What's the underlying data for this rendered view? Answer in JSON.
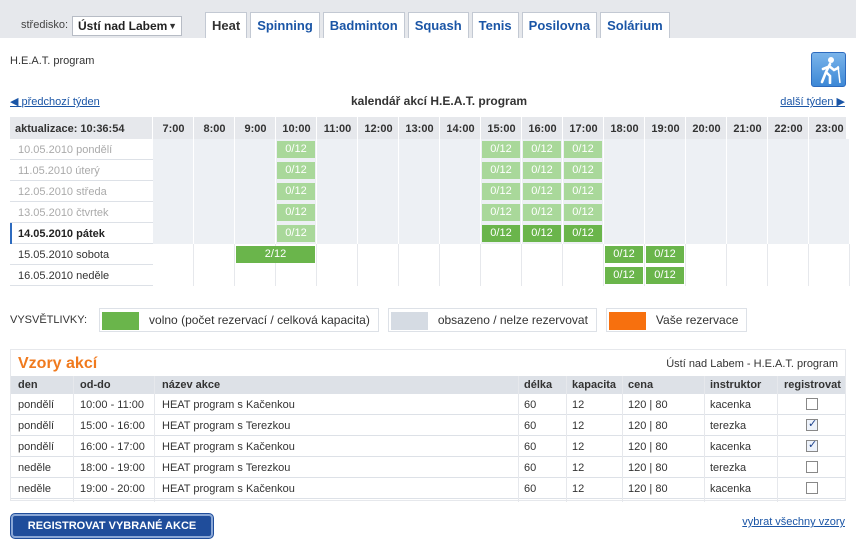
{
  "header": {
    "center_label": "středisko:",
    "center_value": "Ústí nad Labem",
    "tabs": [
      {
        "label": "Heat",
        "active": true
      },
      {
        "label": "Spinning"
      },
      {
        "label": "Badminton"
      },
      {
        "label": "Squash"
      },
      {
        "label": "Tenis"
      },
      {
        "label": "Posilovna"
      },
      {
        "label": "Solárium"
      }
    ]
  },
  "page": {
    "subtitle": "H.E.A.T. program",
    "icon": "person-walking-icon"
  },
  "calendar": {
    "prev_label": "předchozí týden",
    "next_label": "další týden",
    "title": "kalendář akcí H.E.A.T. program",
    "updated_label": "aktualizace: 10:36:54",
    "hours": [
      "7:00",
      "8:00",
      "9:00",
      "10:00",
      "11:00",
      "12:00",
      "13:00",
      "14:00",
      "15:00",
      "16:00",
      "17:00",
      "18:00",
      "19:00",
      "20:00",
      "21:00",
      "22:00",
      "23:00"
    ],
    "days": [
      {
        "label": "10.05.2010 pondělí",
        "state": "past",
        "slots": [
          {
            "hour": "10:00",
            "text": "0/12",
            "span": 1
          },
          {
            "hour": "15:00",
            "text": "0/12",
            "span": 1
          },
          {
            "hour": "16:00",
            "text": "0/12",
            "span": 1
          },
          {
            "hour": "17:00",
            "text": "0/12",
            "span": 1
          }
        ]
      },
      {
        "label": "11.05.2010 úterý",
        "state": "past",
        "slots": [
          {
            "hour": "10:00",
            "text": "0/12",
            "span": 1
          },
          {
            "hour": "15:00",
            "text": "0/12",
            "span": 1
          },
          {
            "hour": "16:00",
            "text": "0/12",
            "span": 1
          },
          {
            "hour": "17:00",
            "text": "0/12",
            "span": 1
          }
        ]
      },
      {
        "label": "12.05.2010 středa",
        "state": "past",
        "slots": [
          {
            "hour": "10:00",
            "text": "0/12",
            "span": 1
          },
          {
            "hour": "15:00",
            "text": "0/12",
            "span": 1
          },
          {
            "hour": "16:00",
            "text": "0/12",
            "span": 1
          },
          {
            "hour": "17:00",
            "text": "0/12",
            "span": 1
          }
        ]
      },
      {
        "label": "13.05.2010 čtvrtek",
        "state": "past",
        "slots": [
          {
            "hour": "10:00",
            "text": "0/12",
            "span": 1
          },
          {
            "hour": "15:00",
            "text": "0/12",
            "span": 1
          },
          {
            "hour": "16:00",
            "text": "0/12",
            "span": 1
          },
          {
            "hour": "17:00",
            "text": "0/12",
            "span": 1
          }
        ]
      },
      {
        "label": "14.05.2010 pátek",
        "state": "today",
        "slots": [
          {
            "hour": "10:00",
            "text": "0/12",
            "span": 1,
            "past": true
          },
          {
            "hour": "15:00",
            "text": "0/12",
            "span": 1
          },
          {
            "hour": "16:00",
            "text": "0/12",
            "span": 1
          },
          {
            "hour": "17:00",
            "text": "0/12",
            "span": 1
          }
        ]
      },
      {
        "label": "15.05.2010 sobota",
        "state": "future",
        "slots": [
          {
            "hour": "9:00",
            "text": "2/12",
            "span": 2
          },
          {
            "hour": "18:00",
            "text": "0/12",
            "span": 1
          },
          {
            "hour": "19:00",
            "text": "0/12",
            "span": 1
          }
        ]
      },
      {
        "label": "16.05.2010 neděle",
        "state": "future",
        "slots": [
          {
            "hour": "18:00",
            "text": "0/12",
            "span": 1
          },
          {
            "hour": "19:00",
            "text": "0/12",
            "span": 1
          }
        ]
      }
    ]
  },
  "legend": {
    "title": "VYSVĚTLIVKY:",
    "items": [
      {
        "label": "volno (počet rezervací / celková kapacita)",
        "color": "#6ab54b"
      },
      {
        "label": "obsazeno / nelze rezervovat",
        "color": "#d5dbe3"
      },
      {
        "label": "Vaše rezervace",
        "color": "#f7700e"
      }
    ]
  },
  "templates": {
    "title": "Vzory akcí",
    "location": "Ústí nad Labem - H.E.A.T. program",
    "columns": [
      "den",
      "od-do",
      "název akce",
      "délka",
      "kapacita",
      "cena",
      "instruktor",
      "registrovat"
    ],
    "rows": [
      {
        "den": "pondělí",
        "time": "10:00 - 11:00",
        "name": "HEAT program s Kačenkou",
        "length": "60",
        "capacity": "12",
        "price": "120 | 80",
        "instructor": "kacenka",
        "checked": false
      },
      {
        "den": "pondělí",
        "time": "15:00 - 16:00",
        "name": "HEAT program s Terezkou",
        "length": "60",
        "capacity": "12",
        "price": "120 | 80",
        "instructor": "terezka",
        "checked": true
      },
      {
        "den": "pondělí",
        "time": "16:00 - 17:00",
        "name": "HEAT program s Kačenkou",
        "length": "60",
        "capacity": "12",
        "price": "120 | 80",
        "instructor": "kacenka",
        "checked": true
      },
      {
        "den": "neděle",
        "time": "18:00 - 19:00",
        "name": "HEAT program s Terezkou",
        "length": "60",
        "capacity": "12",
        "price": "120 | 80",
        "instructor": "terezka",
        "checked": false
      },
      {
        "den": "neděle",
        "time": "19:00 - 20:00",
        "name": "HEAT program s Kačenkou",
        "length": "60",
        "capacity": "12",
        "price": "120 | 80",
        "instructor": "kacenka",
        "checked": false
      }
    ],
    "register_button": "REGISTROVAT VYBRANÉ AKCE",
    "select_all": "vybrat všechny vzory"
  }
}
